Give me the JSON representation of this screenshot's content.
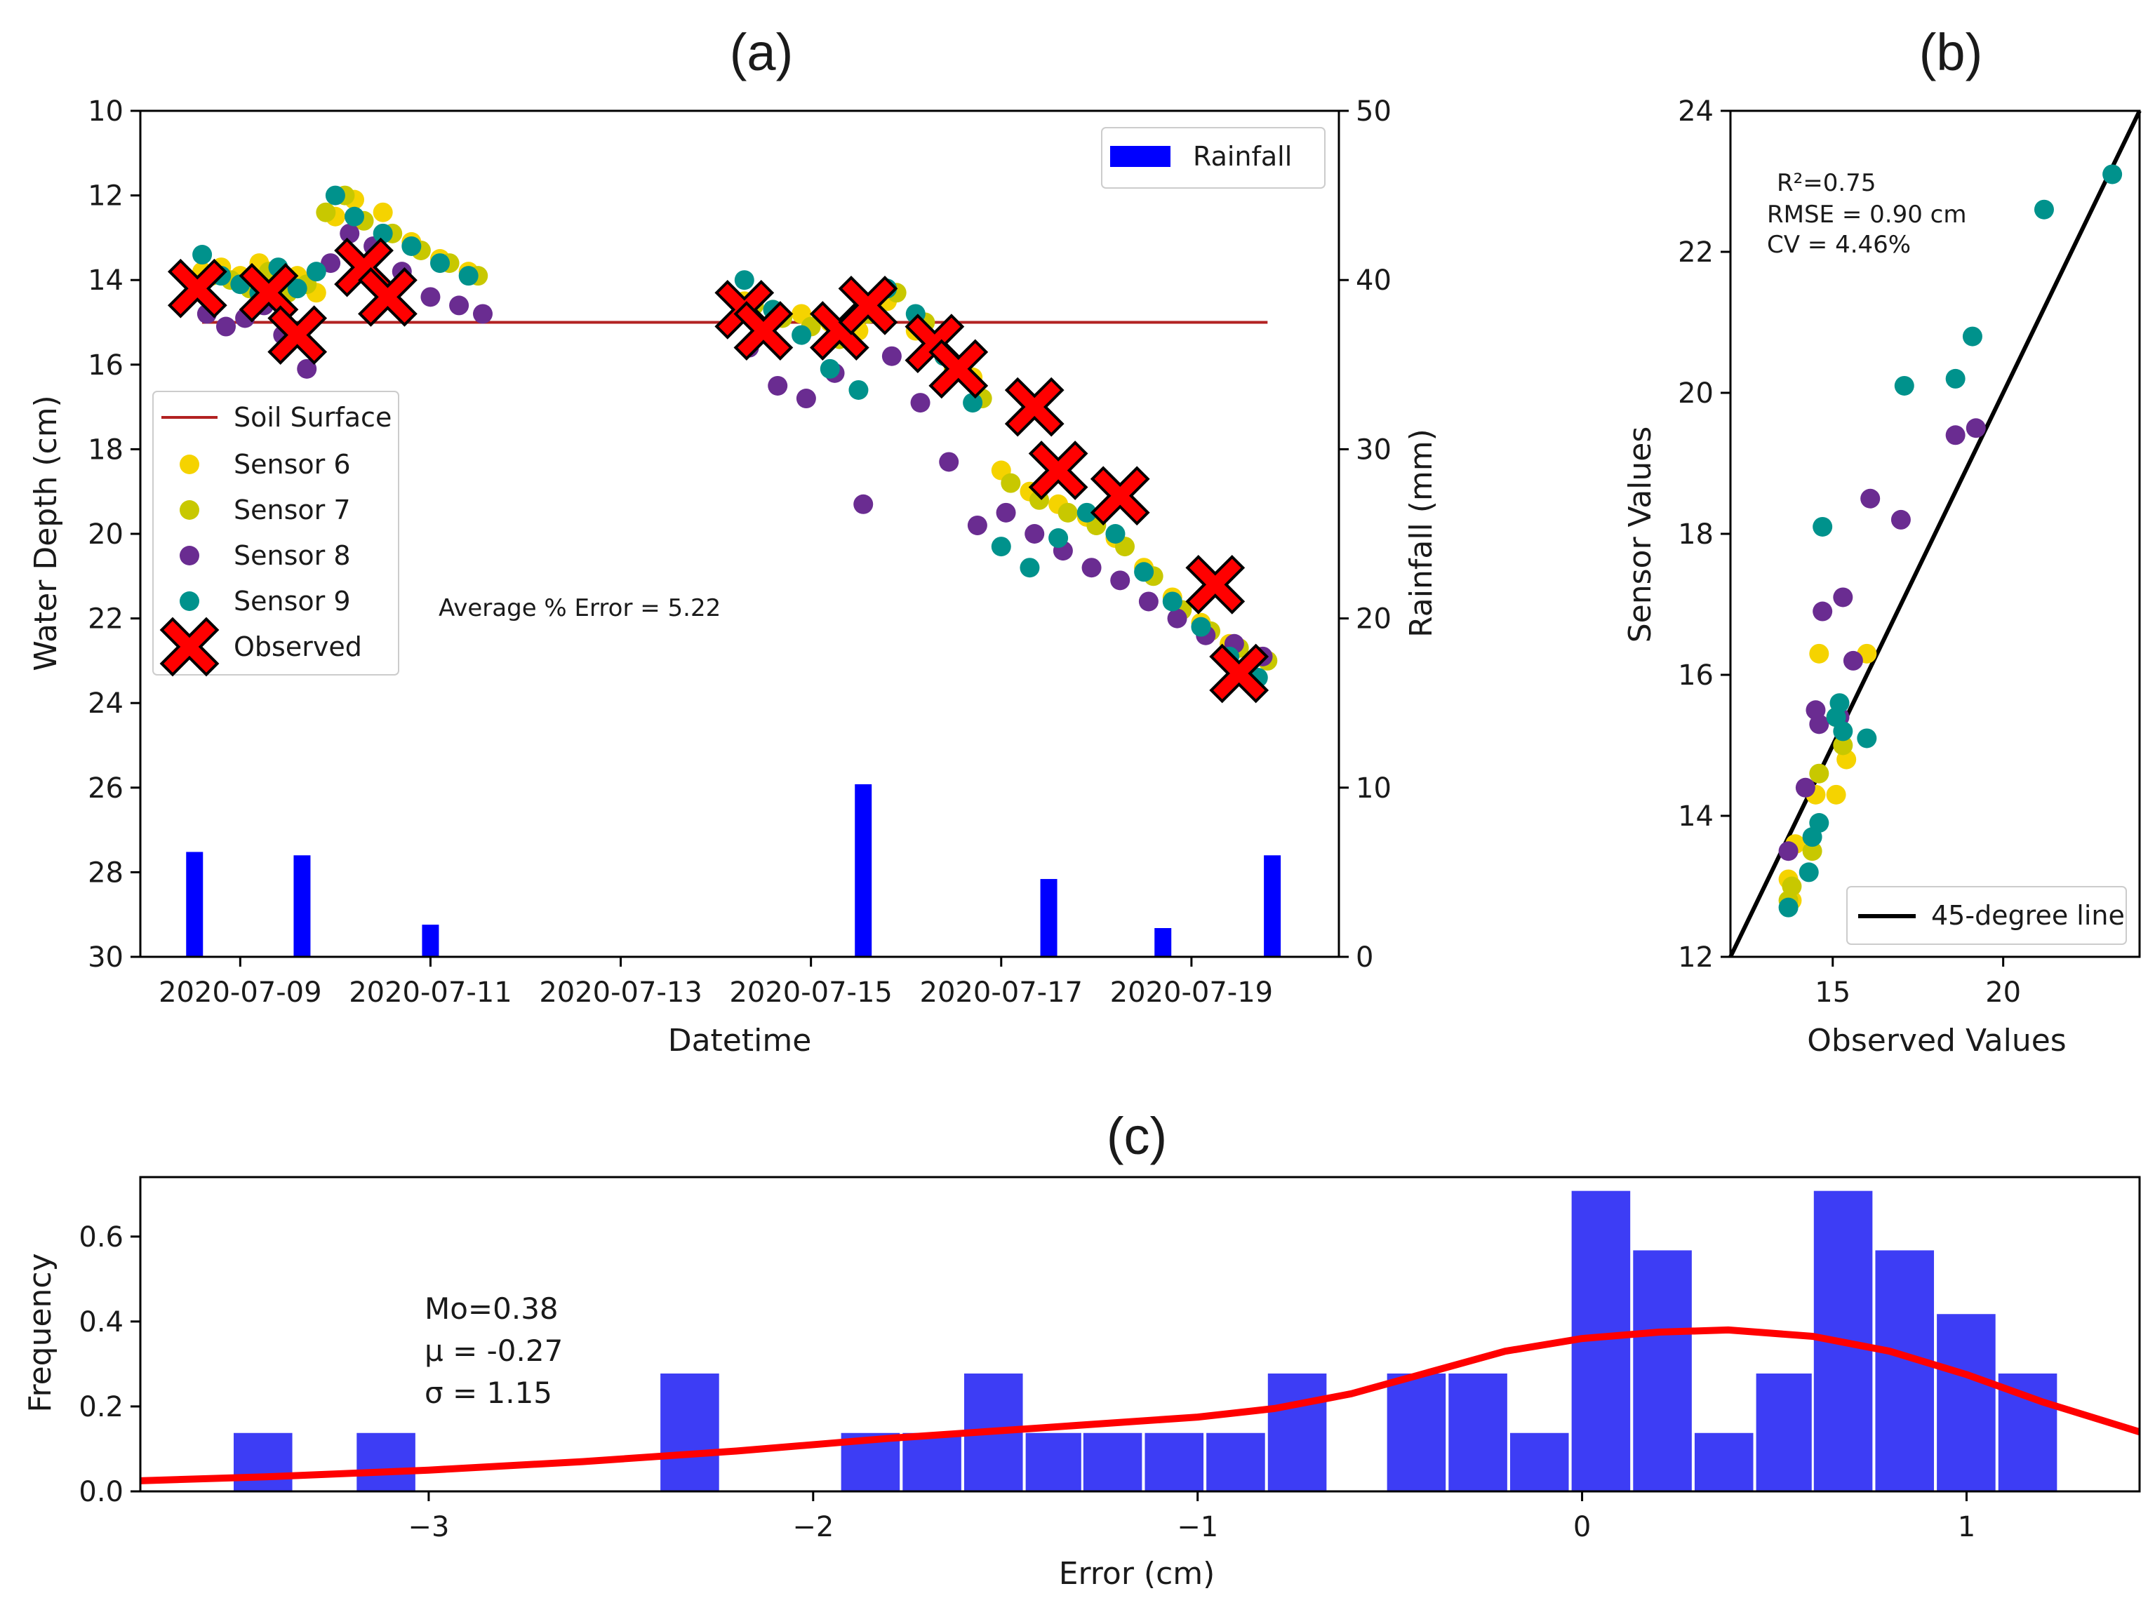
{
  "panel_labels": {
    "a": "(a)",
    "b": "(b)",
    "c": "(c)"
  },
  "chart_data": [
    {
      "id": "a",
      "type": "scatter",
      "title": "(a)",
      "xlabel": "Datetime",
      "ylabel": "Water Depth (cm)",
      "y2label": "Rainfall (mm)",
      "xlim": [
        -1.05,
        11.55
      ],
      "ylim": [
        10,
        30
      ],
      "ylim_inverted": true,
      "y2lim": [
        0,
        50
      ],
      "xticks": [
        0,
        2,
        4,
        6,
        8,
        10
      ],
      "xtick_labels": [
        "2020-07-09",
        "2020-07-11",
        "2020-07-13",
        "2020-07-15",
        "2020-07-17",
        "2020-07-19"
      ],
      "yticks": [
        10,
        12,
        14,
        16,
        18,
        20,
        22,
        24,
        26,
        28,
        30
      ],
      "y2ticks": [
        0,
        10,
        20,
        30,
        40,
        50
      ],
      "annotation": "Average % Error = 5.22",
      "soil_surface": {
        "name": "Soil Surface",
        "y": 15.0,
        "x": [
          -0.4,
          10.8
        ],
        "color": "#b22222"
      },
      "legend": [
        "Soil Surface",
        "Sensor 6",
        "Sensor 7",
        "Sensor 8",
        "Sensor 9",
        "Observed"
      ],
      "rainfall_legend": "Rainfall",
      "rainfall": {
        "name": "Rainfall",
        "color": "#0000ff",
        "x": [
          -0.48,
          0.65,
          2.0,
          6.55,
          8.5,
          9.7,
          10.85
        ],
        "values": [
          6.2,
          6.0,
          1.9,
          10.2,
          4.6,
          1.7,
          6.0
        ]
      },
      "series": [
        {
          "name": "Sensor 6",
          "color": "#f5d300",
          "x": [
            -0.4,
            -0.2,
            0.0,
            0.2,
            0.4,
            0.6,
            0.8,
            1.0,
            1.2,
            1.5,
            1.8,
            2.1,
            2.4,
            5.3,
            5.6,
            5.9,
            6.2,
            6.5,
            6.8,
            7.1,
            7.4,
            7.7,
            8.0,
            8.3,
            8.6,
            8.9,
            9.2,
            9.5,
            9.8,
            10.1,
            10.4,
            10.7
          ],
          "y": [
            13.8,
            13.7,
            13.9,
            13.6,
            14.1,
            13.9,
            14.3,
            12.5,
            12.1,
            12.4,
            13.1,
            13.5,
            13.8,
            14.5,
            14.7,
            14.8,
            15.0,
            15.2,
            14.5,
            15.2,
            15.8,
            16.3,
            18.5,
            19.0,
            19.3,
            19.6,
            20.1,
            20.8,
            21.5,
            22.1,
            22.6,
            22.9
          ]
        },
        {
          "name": "Sensor 7",
          "color": "#c8c800",
          "x": [
            -0.3,
            -0.1,
            0.1,
            0.3,
            0.5,
            0.7,
            0.9,
            1.1,
            1.3,
            1.6,
            1.9,
            2.2,
            2.5,
            5.4,
            5.7,
            6.0,
            6.3,
            6.6,
            6.9,
            7.2,
            7.5,
            7.8,
            8.1,
            8.4,
            8.7,
            9.0,
            9.3,
            9.6,
            9.9,
            10.2,
            10.5,
            10.8
          ],
          "y": [
            13.9,
            14.0,
            14.2,
            13.8,
            14.3,
            14.1,
            12.4,
            12.0,
            12.6,
            12.9,
            13.3,
            13.6,
            13.9,
            14.6,
            14.9,
            15.1,
            15.4,
            14.8,
            14.3,
            15.0,
            16.1,
            16.8,
            18.8,
            19.2,
            19.5,
            19.8,
            20.3,
            21.0,
            21.8,
            22.3,
            22.7,
            23.0
          ]
        },
        {
          "name": "Sensor 8",
          "color": "#6a2c91",
          "x": [
            -0.35,
            -0.15,
            0.05,
            0.25,
            0.45,
            0.7,
            0.95,
            1.15,
            1.4,
            1.7,
            2.0,
            2.3,
            2.55,
            5.35,
            5.65,
            5.95,
            6.25,
            6.55,
            6.85,
            7.15,
            7.45,
            7.75,
            8.05,
            8.35,
            8.65,
            8.95,
            9.25,
            9.55,
            9.85,
            10.15,
            10.45,
            10.75
          ],
          "y": [
            14.8,
            15.1,
            14.9,
            14.6,
            15.3,
            16.1,
            13.6,
            12.9,
            13.2,
            13.8,
            14.4,
            14.6,
            14.8,
            15.6,
            16.5,
            16.8,
            16.2,
            19.3,
            15.8,
            16.9,
            18.3,
            19.8,
            19.5,
            20.0,
            20.4,
            20.8,
            21.1,
            21.6,
            22.0,
            22.4,
            22.6,
            22.9
          ]
        },
        {
          "name": "Sensor 9",
          "color": "#00928c",
          "x": [
            -0.4,
            -0.2,
            0.0,
            0.2,
            0.4,
            0.6,
            0.8,
            1.0,
            1.2,
            1.5,
            1.8,
            2.1,
            2.4,
            5.3,
            5.6,
            5.9,
            6.2,
            6.5,
            6.8,
            7.1,
            7.4,
            7.7,
            8.0,
            8.3,
            8.6,
            8.9,
            9.2,
            9.5,
            9.8,
            10.1,
            10.4,
            10.7
          ],
          "y": [
            13.4,
            13.9,
            14.1,
            14.3,
            13.7,
            14.2,
            13.8,
            12.0,
            12.5,
            12.9,
            13.2,
            13.6,
            13.9,
            14.0,
            14.7,
            15.3,
            16.1,
            16.6,
            14.2,
            14.8,
            15.8,
            16.9,
            20.3,
            20.8,
            20.1,
            19.5,
            20.0,
            20.9,
            21.6,
            22.2,
            22.9,
            23.4
          ]
        },
        {
          "name": "Observed",
          "color": "#ff0000",
          "x": [
            -0.45,
            0.3,
            0.6,
            1.3,
            1.55,
            5.3,
            5.5,
            6.3,
            6.6,
            7.3,
            7.55,
            8.35,
            8.6,
            9.25,
            10.25,
            10.5
          ],
          "y": [
            14.2,
            14.3,
            15.3,
            13.7,
            14.4,
            14.7,
            15.2,
            15.2,
            14.6,
            15.5,
            16.1,
            17.0,
            18.5,
            19.1,
            21.2,
            23.3
          ]
        }
      ]
    },
    {
      "id": "b",
      "type": "scatter",
      "title": "(b)",
      "xlabel": "Observed Values",
      "ylabel": "Sensor Values",
      "xlim": [
        12,
        24
      ],
      "ylim": [
        12,
        24
      ],
      "xticks": [
        15,
        20
      ],
      "yticks": [
        12,
        14,
        16,
        18,
        20,
        22,
        24
      ],
      "stats": [
        "R²=0.75",
        "RMSE = 0.90 cm",
        "CV = 4.46%"
      ],
      "legend": [
        "45-degree line"
      ],
      "reference_line": {
        "name": "45-degree line",
        "x": [
          12,
          24
        ],
        "y": [
          12,
          24
        ]
      },
      "series": [
        {
          "name": "Sensor 6",
          "color": "#f5d300",
          "x": [
            13.7,
            13.9,
            14.5,
            14.6,
            15.1,
            15.4,
            16.0,
            13.8
          ],
          "y": [
            13.1,
            13.6,
            14.3,
            16.3,
            14.3,
            14.8,
            16.3,
            12.8
          ]
        },
        {
          "name": "Sensor 7",
          "color": "#c8c800",
          "x": [
            13.7,
            14.4,
            14.6,
            15.3,
            15.1,
            13.8
          ],
          "y": [
            12.8,
            13.5,
            14.6,
            15.0,
            15.4,
            13.0
          ]
        },
        {
          "name": "Sensor 8",
          "color": "#6a2c91",
          "x": [
            13.7,
            14.2,
            14.5,
            14.6,
            14.7,
            15.2,
            15.3,
            15.6,
            16.1,
            17.0,
            18.6,
            19.2
          ],
          "y": [
            13.5,
            14.4,
            15.5,
            15.3,
            16.9,
            15.4,
            17.1,
            16.2,
            18.5,
            18.2,
            19.4,
            19.5
          ]
        },
        {
          "name": "Sensor 9",
          "color": "#00928c",
          "x": [
            13.7,
            14.3,
            14.4,
            14.6,
            14.7,
            15.1,
            15.2,
            15.3,
            16.0,
            17.1,
            18.6,
            19.1,
            21.2,
            23.2
          ],
          "y": [
            12.7,
            13.2,
            13.7,
            13.9,
            18.1,
            15.4,
            15.6,
            15.2,
            15.1,
            20.1,
            20.2,
            20.8,
            22.6,
            23.1
          ]
        }
      ]
    },
    {
      "id": "c",
      "type": "bar",
      "title": "(c)",
      "xlabel": "Error (cm)",
      "ylabel": "Frequency",
      "xlim": [
        -3.75,
        1.45
      ],
      "ylim": [
        0,
        0.74
      ],
      "xticks": [
        -3,
        -2,
        -1,
        0,
        1
      ],
      "xtick_labels": [
        "−3",
        "−2",
        "−1",
        "0",
        "1"
      ],
      "yticks": [
        0.0,
        0.2,
        0.4,
        0.6
      ],
      "stats": [
        "Mo=0.38",
        "μ = -0.27",
        "σ = 1.15"
      ],
      "bar_color": "#3d3df5",
      "curve_color": "#ff0000",
      "bins": [
        {
          "left": -3.51,
          "width": 0.158,
          "value": 0.14
        },
        {
          "left": -3.19,
          "width": 0.158,
          "value": 0.14
        },
        {
          "left": -2.4,
          "width": 0.158,
          "value": 0.28
        },
        {
          "left": -1.93,
          "width": 0.158,
          "value": 0.14
        },
        {
          "left": -1.77,
          "width": 0.158,
          "value": 0.14
        },
        {
          "left": -1.61,
          "width": 0.158,
          "value": 0.28
        },
        {
          "left": -1.45,
          "width": 0.158,
          "value": 0.14
        },
        {
          "left": -1.3,
          "width": 0.158,
          "value": 0.14
        },
        {
          "left": -1.14,
          "width": 0.158,
          "value": 0.14
        },
        {
          "left": -0.98,
          "width": 0.158,
          "value": 0.14
        },
        {
          "left": -0.82,
          "width": 0.158,
          "value": 0.28
        },
        {
          "left": -0.51,
          "width": 0.158,
          "value": 0.28
        },
        {
          "left": -0.35,
          "width": 0.158,
          "value": 0.28
        },
        {
          "left": -0.19,
          "width": 0.158,
          "value": 0.14
        },
        {
          "left": -0.03,
          "width": 0.158,
          "value": 0.71
        },
        {
          "left": 0.13,
          "width": 0.158,
          "value": 0.57
        },
        {
          "left": 0.29,
          "width": 0.158,
          "value": 0.14
        },
        {
          "left": 0.45,
          "width": 0.158,
          "value": 0.28
        },
        {
          "left": 0.6,
          "width": 0.158,
          "value": 0.71
        },
        {
          "left": 0.76,
          "width": 0.158,
          "value": 0.57
        },
        {
          "left": 0.92,
          "width": 0.158,
          "value": 0.42
        },
        {
          "left": 1.08,
          "width": 0.158,
          "value": 0.28
        }
      ],
      "curve": {
        "x": [
          -3.75,
          -3.4,
          -3.0,
          -2.6,
          -2.2,
          -1.8,
          -1.4,
          -1.0,
          -0.8,
          -0.6,
          -0.4,
          -0.2,
          0.0,
          0.2,
          0.38,
          0.6,
          0.8,
          1.0,
          1.2,
          1.45
        ],
        "y": [
          0.025,
          0.035,
          0.05,
          0.07,
          0.095,
          0.125,
          0.15,
          0.175,
          0.195,
          0.23,
          0.28,
          0.33,
          0.36,
          0.375,
          0.38,
          0.365,
          0.33,
          0.275,
          0.21,
          0.14
        ]
      }
    }
  ]
}
